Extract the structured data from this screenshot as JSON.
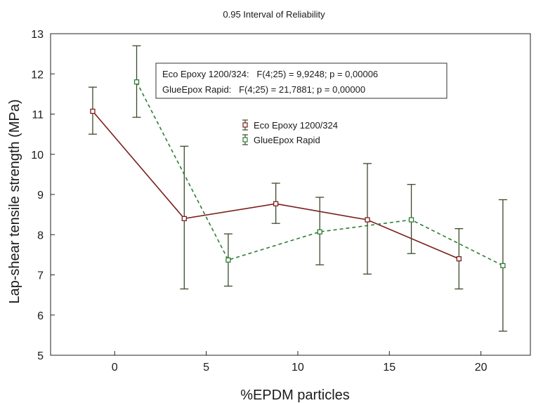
{
  "chart_data": {
    "type": "line",
    "title": "0.95 Interval of Reliability",
    "xlabel": "%EPDM particles",
    "ylabel": "Lap-shear tensile strength (MPa)",
    "xlim": [
      -3.5,
      22.7
    ],
    "ylim": [
      5,
      13
    ],
    "xticks": [
      0,
      5,
      10,
      15,
      20
    ],
    "yticks": [
      5,
      6,
      7,
      8,
      9,
      10,
      11,
      12,
      13
    ],
    "grid": false,
    "legend_position": "center",
    "stats_box": [
      "Eco Epoxy 1200/324:   F(4;25) = 9,9248; p = 0,00006",
      "GlueEpox Rapid:   F(4;25) = 21,7881; p = 0,00000"
    ],
    "series": [
      {
        "name": "Eco Epoxy 1200/324",
        "color": "#7a1e1e",
        "line_style": "solid",
        "x": [
          -1.2,
          3.8,
          8.8,
          13.8,
          18.8
        ],
        "y": [
          11.07,
          8.4,
          8.77,
          8.37,
          7.4
        ],
        "lower": [
          10.5,
          6.65,
          8.28,
          7.02,
          6.65
        ],
        "upper": [
          11.67,
          10.2,
          9.28,
          9.77,
          8.15
        ]
      },
      {
        "name": "GlueEpox Rapid",
        "color": "#2e7d32",
        "line_style": "dashed",
        "x": [
          1.2,
          6.2,
          11.2,
          16.2,
          21.2
        ],
        "y": [
          11.8,
          7.37,
          8.07,
          8.37,
          7.23
        ],
        "lower": [
          10.92,
          6.72,
          7.25,
          7.53,
          5.6
        ],
        "upper": [
          12.7,
          8.02,
          8.93,
          9.25,
          8.87
        ]
      }
    ]
  }
}
